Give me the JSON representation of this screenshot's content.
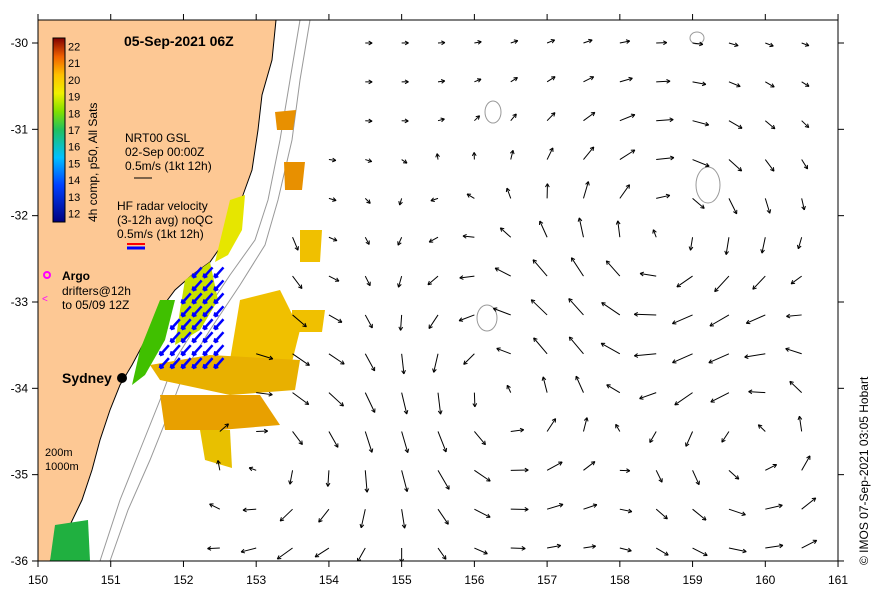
{
  "title": "05-Sep-2021 06Z",
  "colorbar": {
    "label": "4h comp, p50, All Sats",
    "ticks": [
      "12",
      "13",
      "14",
      "15",
      "16",
      "17",
      "18",
      "19",
      "20",
      "21",
      "22"
    ]
  },
  "legend_gsl": {
    "line1": "NRT00 GSL",
    "line2": "02-Sep 00:00Z",
    "line3": "0.5m/s (1kt 12h)"
  },
  "legend_hf": {
    "line1": "HF radar velocity",
    "line2": "(3-12h avg) noQC",
    "line3": "0.5m/s (1kt 12h)"
  },
  "legend_argo": {
    "label": "Argo",
    "line2": "drifters@12h",
    "line3": "to 05/09 12Z"
  },
  "place": "Sydney",
  "isobaths": {
    "a": "200m",
    "b": "1000m"
  },
  "credit": "© IMOS 07-Sep-2021 03:05 Hobart",
  "axes": {
    "x_ticks": [
      "150",
      "151",
      "152",
      "153",
      "154",
      "155",
      "156",
      "157",
      "158",
      "159",
      "160",
      "161"
    ],
    "y_ticks": [
      "-30",
      "-31",
      "-32",
      "-33",
      "-34",
      "-35",
      "-36"
    ]
  },
  "colors": {
    "land": "#fdc894",
    "gsl_arrow": "#000000",
    "hf_arrow": "#0000ff"
  }
}
